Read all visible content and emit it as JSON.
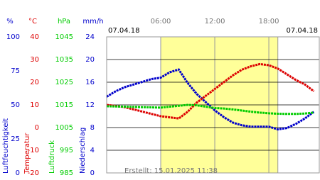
{
  "chart_data": {
    "type": "line",
    "date_start": "07.04.18",
    "date_end": "07.04.18",
    "footer": "Erstellt: 15.01.2025 11:38",
    "x": [
      0,
      1,
      2,
      3,
      4,
      5,
      6,
      7,
      8,
      9,
      10,
      11,
      12,
      13,
      14,
      15,
      16,
      17,
      18,
      19,
      20,
      21,
      22,
      23
    ],
    "xlim": [
      0,
      23.6
    ],
    "xticks": [
      {
        "value": 6,
        "label": "06:00"
      },
      {
        "value": 12,
        "label": "12:00"
      },
      {
        "value": 18,
        "label": "18:00"
      }
    ],
    "daylight": [
      6,
      19
    ],
    "grid": true,
    "grid_axis": 3,
    "axes": [
      {
        "unit": "%",
        "title": "Luftfeuchtigkeit",
        "color": "#0000cc",
        "lim": [
          0,
          100
        ],
        "ticks": [
          0,
          25,
          50,
          75,
          100
        ]
      },
      {
        "unit": "°C",
        "title": "Temperatur",
        "color": "#dd0000",
        "lim": [
          -20,
          40
        ],
        "ticks": [
          -20,
          -10,
          0,
          10,
          20,
          30,
          40
        ]
      },
      {
        "unit": "hPa",
        "title": "Luftdruck",
        "color": "#00cc00",
        "lim": [
          985,
          1045
        ],
        "ticks": [
          985,
          995,
          1005,
          1015,
          1025,
          1035,
          1045
        ]
      },
      {
        "unit": "mm/h",
        "title": "Niederschlag",
        "color": "#0000cc",
        "lim": [
          0,
          24
        ],
        "ticks": [
          0,
          4,
          8,
          12,
          16,
          20,
          24
        ]
      }
    ],
    "series": [
      {
        "axis": 0,
        "color": "#0000cc",
        "values": [
          56,
          60,
          63,
          65,
          67,
          69,
          70,
          74,
          76,
          66,
          58,
          52,
          46,
          41,
          37,
          35,
          34,
          34,
          34,
          32,
          33,
          36,
          40,
          45
        ]
      },
      {
        "axis": 1,
        "color": "#dd0000",
        "values": [
          10,
          9.5,
          9,
          8,
          7,
          6,
          5,
          4.5,
          4,
          7,
          11,
          14,
          17,
          20,
          23,
          25.5,
          27,
          28,
          27.5,
          26,
          23.5,
          21,
          19,
          16
        ]
      },
      {
        "axis": 2,
        "color": "#00cc00",
        "values": [
          1014.4,
          1014.3,
          1014.2,
          1014.1,
          1014,
          1013.9,
          1013.8,
          1014.2,
          1014.6,
          1015,
          1014.8,
          1014.2,
          1013.6,
          1013.4,
          1013,
          1012.5,
          1012,
          1011.6,
          1011.3,
          1011.1,
          1011,
          1011,
          1011.2,
          1011.6
        ]
      }
    ]
  }
}
